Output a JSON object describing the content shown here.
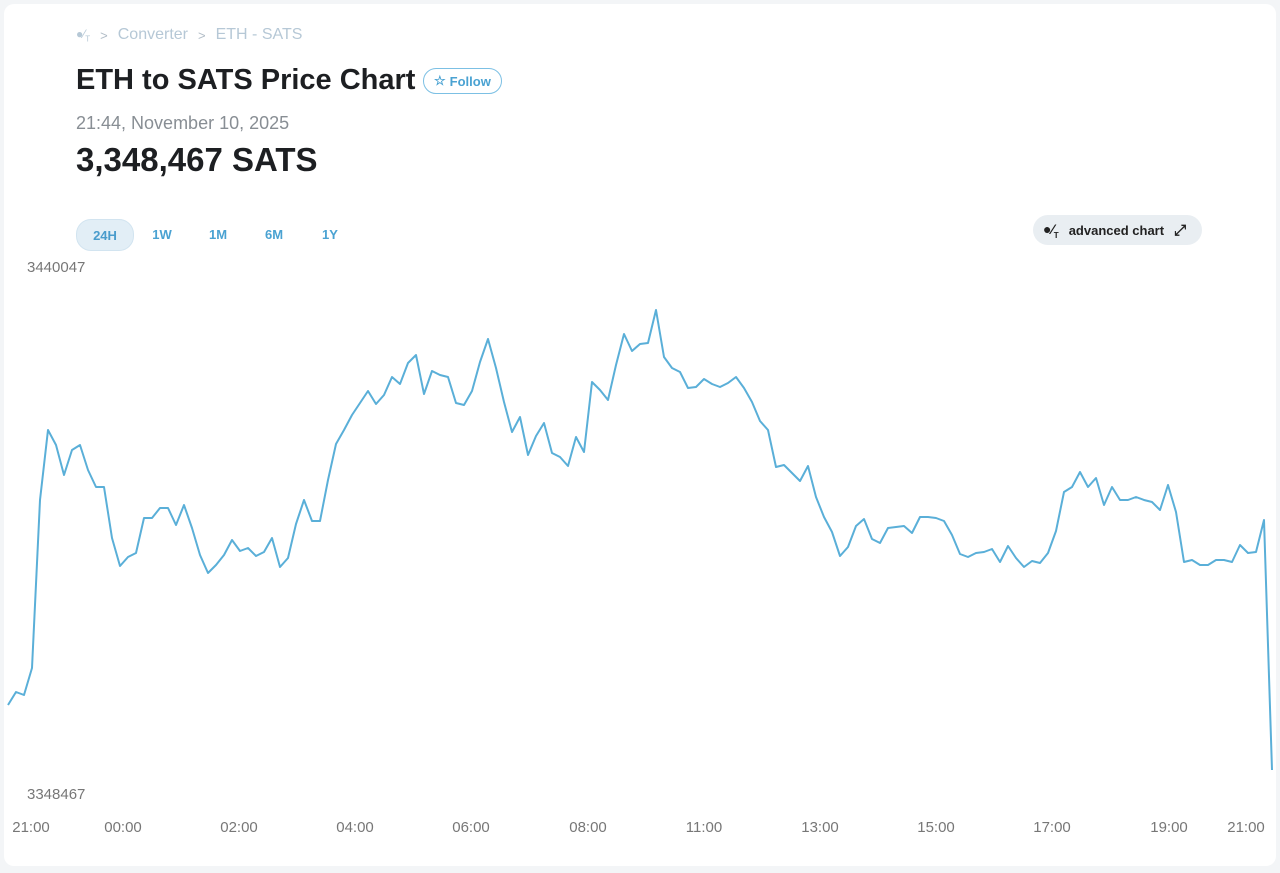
{
  "breadcrumb": {
    "home_icon": "logo-icon",
    "items": [
      "Converter",
      "ETH - SATS"
    ]
  },
  "header": {
    "title": "ETH to SATS Price Chart",
    "follow_label": "Follow",
    "timestamp": "21:44, November 10, 2025",
    "price": "3,348,467 SATS"
  },
  "ranges": [
    {
      "label": "24H",
      "active": true
    },
    {
      "label": "1W"
    },
    {
      "label": "1M"
    },
    {
      "label": "6M"
    },
    {
      "label": "1Y"
    }
  ],
  "advanced_chart_label": "advanced chart",
  "colors": {
    "line": "#5aafd8",
    "accent": "#4aa2d2"
  },
  "chart_data": {
    "type": "line",
    "title": "ETH to SATS Price Chart",
    "ylim": [
      3348467,
      3440047
    ],
    "y_tick_labels": [
      "3440047",
      "3348467"
    ],
    "x_tick_labels": [
      "21:00",
      "00:00",
      "02:00",
      "04:00",
      "06:00",
      "08:00",
      "11:00",
      "13:00",
      "15:00",
      "17:00",
      "19:00",
      "21:00"
    ],
    "values": [
      3363790,
      3366060,
      3365530,
      3370230,
      3399480,
      3411670,
      3409060,
      3403830,
      3408190,
      3409060,
      3404710,
      3401750,
      3401750,
      3392870,
      3387990,
      3389560,
      3390260,
      3396350,
      3396350,
      3398090,
      3398090,
      3395130,
      3398610,
      3394610,
      3389910,
      3386770,
      3388170,
      3389910,
      3392520,
      3390600,
      3391130,
      3389730,
      3390430,
      3392870,
      3387820,
      3389380,
      3395300,
      3399480,
      3395830,
      3395830,
      3402960,
      3409230,
      3411670,
      3414280,
      3416370,
      3418460,
      3416200,
      3417760,
      3420900,
      3419680,
      3423330,
      3424730,
      3417940,
      3421940,
      3421240,
      3420900,
      3416370,
      3416020,
      3418460,
      3423510,
      3427510,
      3422460,
      3416540,
      3411320,
      3413930,
      3407320,
      3410620,
      3412890,
      3407670,
      3406970,
      3405400,
      3410450,
      3407840,
      3420030,
      3418630,
      3416890,
      3422990,
      3428380,
      3425420,
      3426640,
      3426820,
      3432560,
      3424380,
      3422460,
      3421770,
      3418980,
      3419160,
      3420550,
      3419680,
      3419160,
      3419850,
      3420900,
      3418980,
      3416540,
      3413240,
      3411670,
      3405230,
      3405580,
      3404180,
      3402790,
      3405400,
      3400000,
      3396520,
      3393910,
      3389730,
      3391300,
      3394960,
      3396170,
      3392690,
      3392000,
      3394610,
      3394780,
      3394960,
      3393740,
      3396520,
      3396520,
      3396350,
      3395830,
      3393390,
      3390080,
      3389560,
      3390260,
      3390430,
      3390950,
      3388690,
      3391470,
      3389380,
      3387820,
      3388860,
      3388510,
      3390260,
      3394090,
      3400880,
      3401750,
      3404360,
      3401750,
      3403310,
      3398610,
      3401750,
      3399480,
      3399480,
      3400000,
      3399480,
      3399130,
      3397740,
      3402090,
      3397390,
      3388690,
      3389040,
      3388170,
      3388170,
      3389040,
      3389040,
      3388690,
      3391650,
      3390260,
      3390430,
      3396000,
      3352480
    ]
  }
}
